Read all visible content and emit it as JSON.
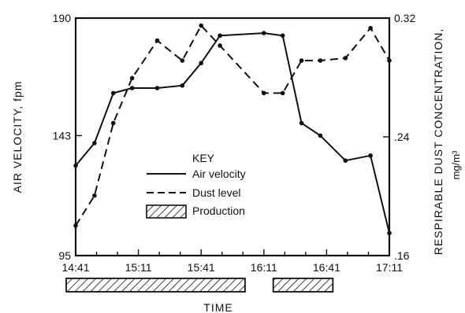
{
  "chart_data": {
    "type": "line",
    "xlabel": "TIME",
    "ylabel_left": "AIR VELOCITY, fpm",
    "ylabel_right": "RESPIRABLE DUST CONCENTRATION,",
    "ylabel_right_unit": "mg/m³",
    "x_ticks": [
      "14:41",
      "15:11",
      "15:41",
      "16:11",
      "16:41",
      "17:11"
    ],
    "y_left_ticks": [
      "190",
      "143",
      "95"
    ],
    "y_right_ticks": [
      "0.32",
      ".24",
      ".16"
    ],
    "ylim_left": [
      95,
      190
    ],
    "ylim_right": [
      0.16,
      0.32
    ],
    "xlim_minutes_after_14_41": [
      0,
      150
    ],
    "grid": false,
    "legend_title": "KEY",
    "legend_position": "center",
    "series": [
      {
        "name": "Air velocity",
        "style": "solid",
        "axis": "left",
        "x": [
          "14:41",
          "14:50",
          "14:59",
          "15:08",
          "15:20",
          "15:32",
          "15:41",
          "15:50",
          "16:11",
          "16:20",
          "16:29",
          "16:38",
          "16:50",
          "17:02",
          "17:11"
        ],
        "y": [
          131,
          140,
          160,
          162,
          162,
          163,
          172,
          183,
          184,
          183,
          148,
          143,
          133,
          135,
          104
        ]
      },
      {
        "name": "Dust level",
        "style": "dashed",
        "axis": "left",
        "x": [
          "14:41",
          "14:50",
          "14:59",
          "15:08",
          "15:20",
          "15:32",
          "15:41",
          "15:50",
          "16:11",
          "16:20",
          "16:29",
          "16:38",
          "16:50",
          "17:02",
          "17:11"
        ],
        "y": [
          107,
          119,
          148,
          166,
          181,
          173,
          187,
          179,
          160,
          160,
          173,
          173,
          174,
          186,
          173
        ]
      }
    ],
    "production": {
      "label": "Production",
      "periods": [
        [
          "14:41",
          "16:02"
        ],
        [
          "16:20",
          "16:44"
        ]
      ]
    }
  }
}
